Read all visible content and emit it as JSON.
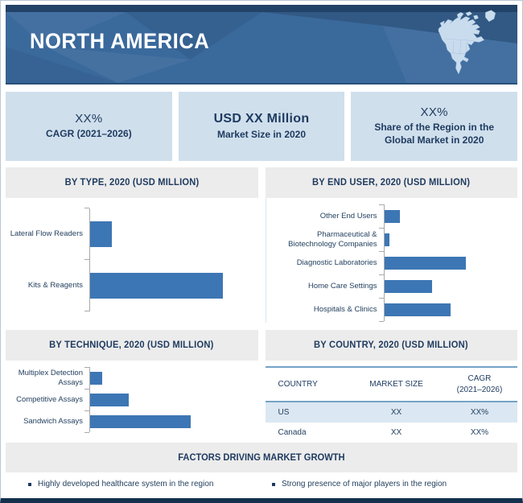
{
  "theme": {
    "banner_bg": "#3a699c",
    "banner_top_strip": "#1d3d5f",
    "accent_navy": "#1e3a5f",
    "stat_box_bg": "#cfdfec",
    "panel_header_bg": "#ececec",
    "bar_color": "#3d76b4",
    "axis_color": "#a9a9a9",
    "table_line_color": "#74a3c7",
    "table_highlight_row_bg": "#dbe7f2",
    "bottom_bar": "#14304c",
    "map_fill": "#c9dcee"
  },
  "header": {
    "title": "NORTH AMERICA"
  },
  "stats": {
    "boxes": [
      {
        "value": "XX%",
        "label": "CAGR (2021–2026)"
      },
      {
        "value": "USD XX Million",
        "label": "Market Size in 2020"
      },
      {
        "value": "XX%",
        "label": "Share of the Region in the Global Market in 2020"
      }
    ]
  },
  "chart_data": [
    {
      "id": "by_type",
      "type": "bar",
      "orientation": "horizontal",
      "title": "BY TYPE, 2020 (USD MILLION)",
      "unit": "USD Million (numeric values masked as XX in source)",
      "categories": [
        "Lateral Flow Readers",
        "Kits & Reagents"
      ],
      "values_pct_of_plot": [
        13.5,
        83
      ],
      "relative_to_max": [
        0.16,
        1.0
      ],
      "legend": "none",
      "grid": "off"
    },
    {
      "id": "by_end_user",
      "type": "bar",
      "orientation": "horizontal",
      "title": "BY END USER, 2020 (USD MILLION)",
      "unit": "USD Million (numeric values masked as XX in source)",
      "categories": [
        "Other End Users",
        "Pharmaceutical & Biotechnology Companies",
        "Diagnostic Laboratories",
        "Home Care Settings",
        "Hospitals & Clinics"
      ],
      "values_pct_of_plot": [
        12.5,
        4,
        65,
        38,
        53
      ],
      "relative_to_max": [
        0.19,
        0.06,
        1.0,
        0.58,
        0.81
      ],
      "legend": "none",
      "grid": "off"
    },
    {
      "id": "by_technique",
      "type": "bar",
      "orientation": "horizontal",
      "title": "BY TECHNIQUE, 2020 (USD MILLION)",
      "unit": "USD Million (numeric values masked as XX in source)",
      "categories": [
        "Multiplex Detection Assays",
        "Competitive Assays",
        "Sandwich Assays"
      ],
      "values_pct_of_plot": [
        7.5,
        24,
        63
      ],
      "relative_to_max": [
        0.12,
        0.38,
        1.0
      ],
      "legend": "none",
      "grid": "off"
    }
  ],
  "by_country": {
    "title": "BY COUNTRY, 2020 (USD MILLION)",
    "headers": [
      "COUNTRY",
      "MARKET SIZE",
      "CAGR\n(2021–2026)"
    ],
    "rows": [
      {
        "country": "US",
        "market_size": "XX",
        "cagr": "XX%",
        "highlight": true
      },
      {
        "country": "Canada",
        "market_size": "XX",
        "cagr": "XX%",
        "highlight": false
      }
    ]
  },
  "factors": {
    "title": "FACTORS DRIVING MARKET GROWTH",
    "items": [
      "Highly developed healthcare system in the region",
      "Strong presence of major players in the region"
    ]
  }
}
